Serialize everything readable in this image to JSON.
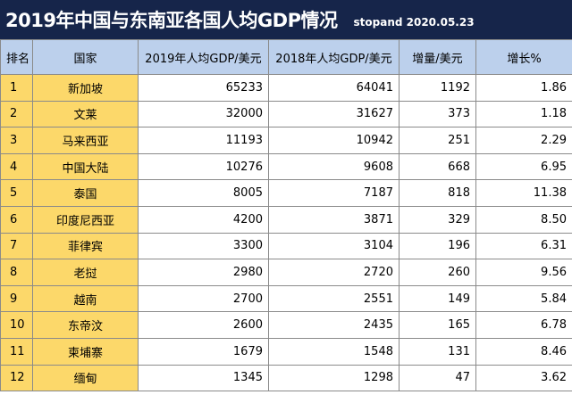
{
  "header": {
    "title": "2019年中国与东南亚各国人均GDP情况",
    "subtitle": "stopand 2020.05.23"
  },
  "table": {
    "columns": [
      "排名",
      "国家",
      "2019年人均GDP/美元",
      "2018年人均GDP/美元",
      "增量/美元",
      "增长%"
    ],
    "rows": [
      [
        "1",
        "新加坡",
        "65233",
        "64041",
        "1192",
        "1.86"
      ],
      [
        "2",
        "文莱",
        "32000",
        "31627",
        "373",
        "1.18"
      ],
      [
        "3",
        "马来西亚",
        "11193",
        "10942",
        "251",
        "2.29"
      ],
      [
        "4",
        "中国大陆",
        "10276",
        "9608",
        "668",
        "6.95"
      ],
      [
        "5",
        "泰国",
        "8005",
        "7187",
        "818",
        "11.38"
      ],
      [
        "6",
        "印度尼西亚",
        "4200",
        "3871",
        "329",
        "8.50"
      ],
      [
        "7",
        "菲律宾",
        "3300",
        "3104",
        "196",
        "6.31"
      ],
      [
        "8",
        "老挝",
        "2980",
        "2720",
        "260",
        "9.56"
      ],
      [
        "9",
        "越南",
        "2700",
        "2551",
        "149",
        "5.84"
      ],
      [
        "10",
        "东帝汶",
        "2600",
        "2435",
        "165",
        "6.78"
      ],
      [
        "11",
        "柬埔寨",
        "1679",
        "1548",
        "131",
        "8.46"
      ],
      [
        "12",
        "缅甸",
        "1345",
        "1298",
        "47",
        "3.62"
      ]
    ]
  }
}
